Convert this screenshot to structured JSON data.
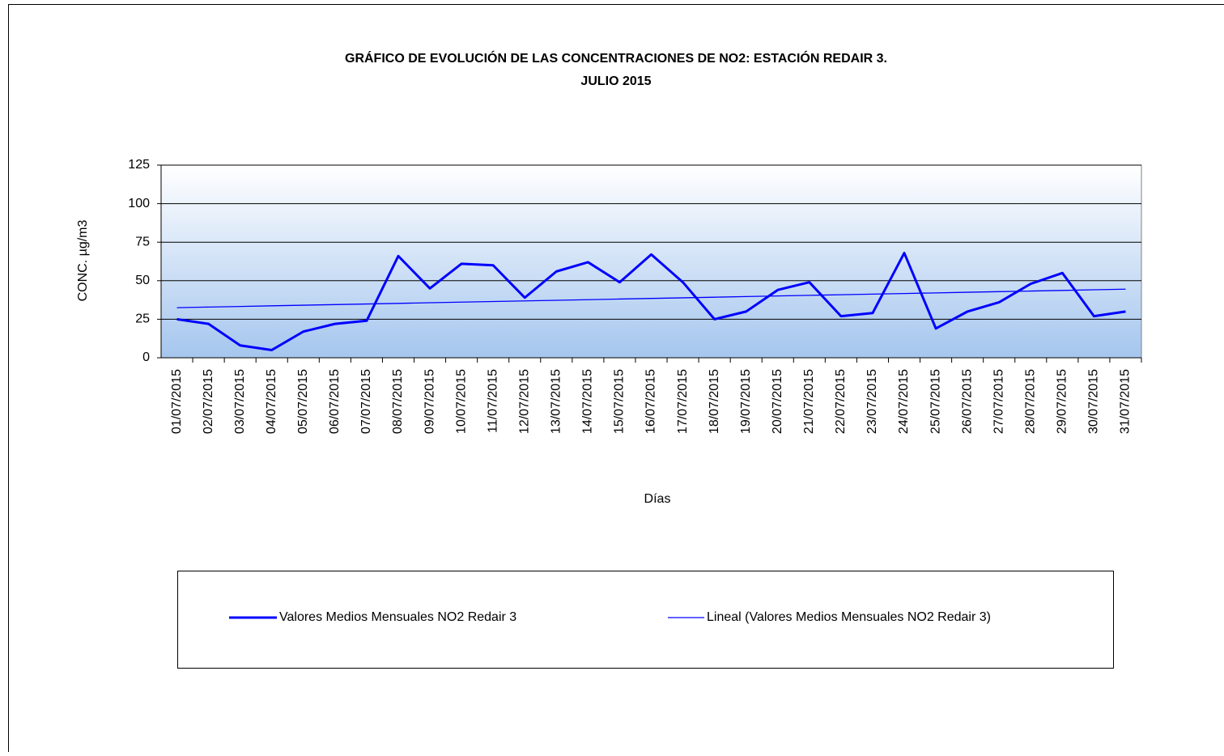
{
  "chart_data": {
    "type": "line",
    "title": "GRÁFICO DE EVOLUCIÓN  DE LAS CONCENTRACIONES DE NO2: ESTACIÓN REDAIR 3.",
    "subtitle": "JULIO 2015",
    "x_label": "Días",
    "y_label": "CONC. µg/m3",
    "categories": [
      "01/07/2015",
      "02/07/2015",
      "03/07/2015",
      "04/07/2015",
      "05/07/2015",
      "06/07/2015",
      "07/07/2015",
      "08/07/2015",
      "09/07/2015",
      "10/07/2015",
      "11/07/2015",
      "12/07/2015",
      "13/07/2015",
      "14/07/2015",
      "15/07/2015",
      "16/07/2015",
      "17/07/2015",
      "18/07/2015",
      "19/07/2015",
      "20/07/2015",
      "21/07/2015",
      "22/07/2015",
      "23/07/2015",
      "24/07/2015",
      "25/07/2015",
      "26/07/2015",
      "27/07/2015",
      "28/07/2015",
      "29/07/2015",
      "30/07/2015",
      "31/07/2015"
    ],
    "series": [
      {
        "name": "Valores Medios Mensuales NO2 Redair 3",
        "color": "#0000ff",
        "width": 3,
        "values": [
          25,
          22,
          8,
          5,
          17,
          22,
          24,
          66,
          45,
          61,
          60,
          39,
          56,
          62,
          49,
          67,
          49,
          25,
          30,
          44,
          49,
          27,
          29,
          68,
          19,
          30,
          36,
          48,
          55,
          27,
          30
        ]
      },
      {
        "name": "Lineal (Valores Medios Mensuales NO2 Redair 3)",
        "color": "#0000ff",
        "width": 1.3,
        "values": [
          32.5,
          32.9,
          33.3,
          33.7,
          34.1,
          34.5,
          34.9,
          35.3,
          35.7,
          36.1,
          36.5,
          36.9,
          37.3,
          37.7,
          38.1,
          38.5,
          38.9,
          39.3,
          39.7,
          40.1,
          40.5,
          40.9,
          41.3,
          41.7,
          42.1,
          42.5,
          42.9,
          43.3,
          43.7,
          44.1,
          44.5
        ]
      }
    ],
    "ylim": [
      0,
      125
    ],
    "yticks": [
      0,
      25,
      50,
      75,
      100,
      125
    ],
    "grid": true,
    "legend": "bottom"
  }
}
